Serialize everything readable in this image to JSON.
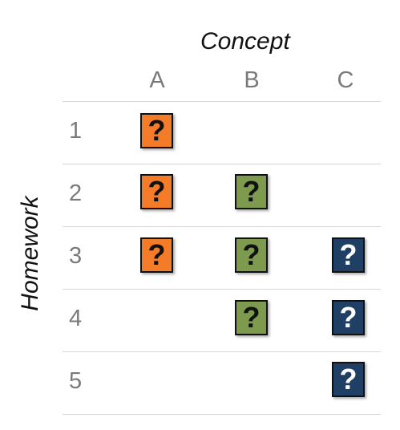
{
  "concept_label": "Concept",
  "homework_label": "Homework",
  "columns": [
    "A",
    "B",
    "C"
  ],
  "rows": [
    "1",
    "2",
    "3",
    "4",
    "5"
  ],
  "colors": {
    "A": "#f47b27",
    "B": "#7e9a4f",
    "C": "#1f3f64"
  },
  "text_colors": {
    "A": "#111111",
    "B": "#111111",
    "C": "#ffffff"
  },
  "question_mark": "?",
  "cells": [
    {
      "row": "1",
      "col": "A",
      "symbol": "?"
    },
    {
      "row": "2",
      "col": "A",
      "symbol": "?"
    },
    {
      "row": "2",
      "col": "B",
      "symbol": "?"
    },
    {
      "row": "3",
      "col": "A",
      "symbol": "?"
    },
    {
      "row": "3",
      "col": "B",
      "symbol": "?"
    },
    {
      "row": "3",
      "col": "C",
      "symbol": "?"
    },
    {
      "row": "4",
      "col": "B",
      "symbol": "?"
    },
    {
      "row": "4",
      "col": "C",
      "symbol": "?"
    },
    {
      "row": "5",
      "col": "C",
      "symbol": "?"
    }
  ]
}
